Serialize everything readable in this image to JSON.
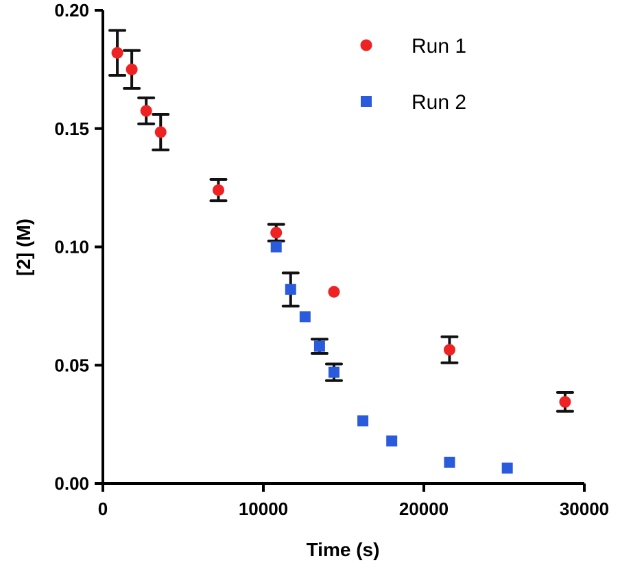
{
  "chart_data": {
    "type": "scatter",
    "title": "",
    "xlabel": "Time (s)",
    "ylabel": "[2] (M)",
    "xlim": [
      0,
      30000
    ],
    "ylim": [
      0,
      0.2
    ],
    "xticks": [
      0,
      10000,
      20000,
      30000
    ],
    "xtick_labels": [
      "0",
      "10000",
      "20000",
      "30000"
    ],
    "yticks": [
      0,
      0.05,
      0.1,
      0.15,
      0.2
    ],
    "ytick_labels": [
      "0.00",
      "0.05",
      "0.10",
      "0.15",
      "0.20"
    ],
    "grid": false,
    "legend_position": "top-right",
    "series": [
      {
        "name": "Run 1",
        "marker": "circle",
        "color": "#ee2222",
        "points": [
          {
            "x": 900,
            "y": 0.182,
            "err": 0.0095
          },
          {
            "x": 1800,
            "y": 0.175,
            "err": 0.008
          },
          {
            "x": 2700,
            "y": 0.1575,
            "err": 0.0055
          },
          {
            "x": 3600,
            "y": 0.1485,
            "err": 0.0075
          },
          {
            "x": 7200,
            "y": 0.124,
            "err": 0.0045
          },
          {
            "x": 10800,
            "y": 0.106,
            "err": 0.0035
          },
          {
            "x": 14400,
            "y": 0.081,
            "err": null
          },
          {
            "x": 21600,
            "y": 0.0565,
            "err": 0.0055
          },
          {
            "x": 28800,
            "y": 0.0345,
            "err": 0.004
          }
        ]
      },
      {
        "name": "Run 2",
        "marker": "square",
        "color": "#2a5bdc",
        "points": [
          {
            "x": 10800,
            "y": 0.1,
            "err": null
          },
          {
            "x": 11700,
            "y": 0.082,
            "err": 0.007
          },
          {
            "x": 12600,
            "y": 0.0705,
            "err": null
          },
          {
            "x": 13500,
            "y": 0.058,
            "err": 0.003
          },
          {
            "x": 14400,
            "y": 0.047,
            "err": 0.0035
          },
          {
            "x": 16200,
            "y": 0.0265,
            "err": null
          },
          {
            "x": 18000,
            "y": 0.018,
            "err": null
          },
          {
            "x": 21600,
            "y": 0.009,
            "err": null
          },
          {
            "x": 25200,
            "y": 0.0065,
            "err": null
          }
        ]
      }
    ]
  }
}
